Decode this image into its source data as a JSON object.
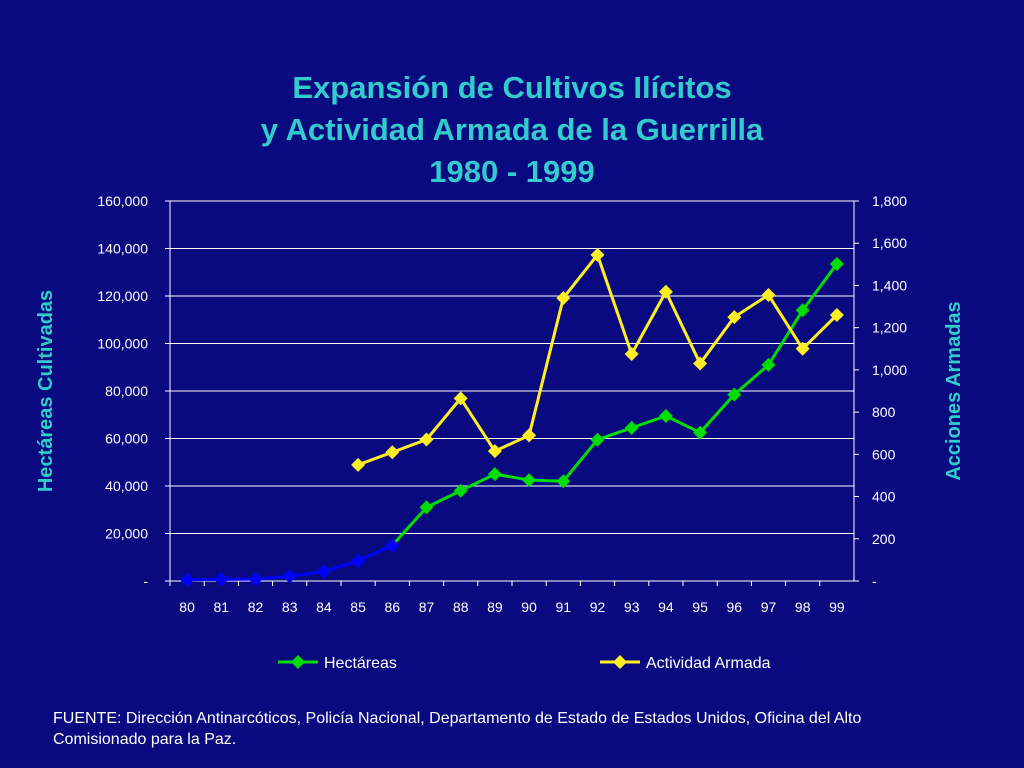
{
  "chart_data": {
    "type": "line",
    "title_lines": [
      "Expansión de Cultivos Ilícitos",
      "y Actividad Armada de la Guerrilla",
      "1980 - 1999"
    ],
    "categories": [
      "80",
      "81",
      "82",
      "83",
      "84",
      "85",
      "86",
      "87",
      "88",
      "89",
      "90",
      "91",
      "92",
      "93",
      "94",
      "95",
      "96",
      "97",
      "98",
      "99"
    ],
    "ylabel": "Hectáreas Cultivadas",
    "y2label": "Acciones Armadas",
    "ylim": [
      0,
      160000
    ],
    "y2lim": [
      0,
      1800
    ],
    "yticks": [
      "-",
      "20,000",
      "40,000",
      "60,000",
      "80,000",
      "100,000",
      "120,000",
      "140,000",
      "160,000"
    ],
    "y2ticks": [
      "-",
      "200",
      "400",
      "600",
      "800",
      "1,000",
      "1,200",
      "1,400",
      "1,600",
      "1,800"
    ],
    "grid": true,
    "legend_position": "bottom",
    "series": [
      {
        "name": "Hectáreas",
        "axis": "left",
        "color": "#00dd00",
        "early_color": "#0000ff",
        "values": [
          500,
          700,
          800,
          2000,
          4000,
          8500,
          15000,
          31000,
          38000,
          45000,
          42500,
          42000,
          59500,
          64500,
          69500,
          62500,
          78500,
          91000,
          114000,
          133500
        ]
      },
      {
        "name": "Actividad Armada",
        "axis": "right",
        "color": "#ffee22",
        "values": [
          null,
          null,
          null,
          null,
          null,
          550,
          610,
          670,
          865,
          615,
          690,
          1340,
          1545,
          1075,
          1370,
          1030,
          1250,
          1355,
          1100,
          1260
        ]
      }
    ]
  },
  "source_text": "FUENTE: Dirección Antinarcóticos, Policía Nacional, Departamento de Estado de Estados Unidos, Oficina del Alto Comisionado para la Paz."
}
